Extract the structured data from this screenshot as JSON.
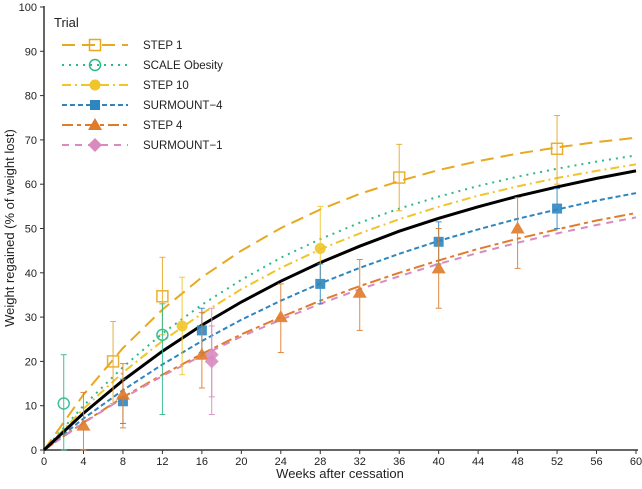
{
  "chart_data": {
    "type": "line",
    "xlabel": "Weeks after cessation",
    "ylabel": "Weight regained (% of weight lost)",
    "xlim": [
      0,
      60
    ],
    "ylim": [
      0,
      100
    ],
    "xticks": [
      0,
      4,
      8,
      12,
      16,
      20,
      24,
      28,
      32,
      36,
      40,
      44,
      48,
      52,
      56,
      60
    ],
    "yticks": [
      0,
      10,
      20,
      30,
      40,
      50,
      60,
      70,
      80,
      90,
      100
    ],
    "grid": false,
    "legend": {
      "title": "Trial",
      "placement": "top-left"
    },
    "curve_x": [
      0,
      4,
      8,
      12,
      16,
      20,
      24,
      28,
      32,
      36,
      40,
      44,
      48,
      52,
      56,
      60
    ],
    "overall_curve": {
      "color": "#000000",
      "values": [
        0,
        8.3,
        15.7,
        22.3,
        28.2,
        33.4,
        38.1,
        42.3,
        46.0,
        49.4,
        52.3,
        54.9,
        57.3,
        59.4,
        61.3,
        63.0
      ]
    },
    "series": [
      {
        "name": "STEP 1",
        "color": "#E8A820",
        "marker": "open-square",
        "dash": "long-dash",
        "curve": [
          0,
          12.5,
          23.0,
          31.7,
          39.0,
          45.0,
          50.1,
          54.3,
          57.8,
          60.7,
          63.2,
          65.2,
          66.9,
          68.3,
          69.5,
          70.5
        ],
        "points": [
          {
            "x": 7,
            "y": 20,
            "lo": 10.5,
            "hi": 29
          },
          {
            "x": 12,
            "y": 34.7,
            "lo": 26,
            "hi": 43.5
          },
          {
            "x": 36,
            "y": 61.5,
            "lo": 54,
            "hi": 69
          },
          {
            "x": 52,
            "y": 68,
            "lo": 60,
            "hi": 75.5
          }
        ]
      },
      {
        "name": "SCALE Obesity",
        "color": "#2DB88A",
        "marker": "open-circle",
        "dash": "dotted",
        "curve": [
          0,
          10.0,
          18.7,
          26.3,
          32.8,
          38.4,
          43.4,
          47.6,
          51.3,
          54.5,
          57.2,
          59.6,
          61.7,
          63.5,
          65.1,
          66.5
        ],
        "points": [
          {
            "x": 2,
            "y": 10.5,
            "lo": 0,
            "hi": 21.5
          },
          {
            "x": 12,
            "y": 26,
            "lo": 8,
            "hi": 33
          }
        ]
      },
      {
        "name": "STEP 10",
        "color": "#F0C52A",
        "marker": "filled-circle",
        "dash": "dash-dot",
        "curve": [
          0,
          9.3,
          17.5,
          24.6,
          30.8,
          36.3,
          41.1,
          45.3,
          48.9,
          52.1,
          54.9,
          57.4,
          59.5,
          61.4,
          63.0,
          64.5
        ],
        "points": [
          {
            "x": 14,
            "y": 28,
            "lo": 17,
            "hi": 39
          },
          {
            "x": 28,
            "y": 45.5,
            "lo": 37,
            "hi": 55
          }
        ]
      },
      {
        "name": "SURMOUNT−4",
        "color": "#2E86C1",
        "marker": "filled-square",
        "dash": "short-dash",
        "curve": [
          0,
          7.1,
          13.5,
          19.3,
          24.6,
          29.4,
          33.7,
          37.6,
          41.1,
          44.3,
          47.2,
          49.8,
          52.2,
          54.3,
          56.3,
          58.0
        ],
        "points": [
          {
            "x": 8,
            "y": 11,
            "lo": 6,
            "hi": 16
          },
          {
            "x": 16,
            "y": 27,
            "lo": 22,
            "hi": 32
          },
          {
            "x": 28,
            "y": 37.5,
            "lo": 33,
            "hi": 42
          },
          {
            "x": 40,
            "y": 47,
            "lo": 42,
            "hi": 51.5
          },
          {
            "x": 52,
            "y": 54.5,
            "lo": 50,
            "hi": 59
          }
        ]
      },
      {
        "name": "STEP 4",
        "color": "#E07B2A",
        "marker": "filled-triangle",
        "dash": "long-dash-dot",
        "curve": [
          0,
          6.2,
          11.9,
          17.0,
          21.7,
          26.1,
          30.0,
          33.7,
          37.0,
          40.0,
          42.8,
          45.4,
          47.7,
          49.8,
          51.8,
          53.5
        ],
        "points": [
          {
            "x": 4,
            "y": 5.5,
            "lo": 0,
            "hi": 13
          },
          {
            "x": 8,
            "y": 12.5,
            "lo": 5,
            "hi": 19.5
          },
          {
            "x": 16,
            "y": 21.5,
            "lo": 14,
            "hi": 31
          },
          {
            "x": 24,
            "y": 30,
            "lo": 22,
            "hi": 37.5
          },
          {
            "x": 32,
            "y": 35.5,
            "lo": 27,
            "hi": 43
          },
          {
            "x": 40,
            "y": 41,
            "lo": 32,
            "hi": 50
          },
          {
            "x": 48,
            "y": 50,
            "lo": 41,
            "hi": 57
          }
        ]
      },
      {
        "name": "SURMOUNT−1",
        "color": "#D98BC0",
        "marker": "filled-diamond",
        "dash": "dash",
        "curve": [
          0,
          6.1,
          11.7,
          16.7,
          21.3,
          25.6,
          29.4,
          33.0,
          36.3,
          39.2,
          42.0,
          44.5,
          46.8,
          48.9,
          50.8,
          52.5
        ],
        "points": [
          {
            "x": 17,
            "y": 21.5,
            "lo": 8,
            "hi": 32
          },
          {
            "x": 17,
            "y": 20,
            "lo": 12,
            "hi": 28
          }
        ]
      }
    ]
  }
}
